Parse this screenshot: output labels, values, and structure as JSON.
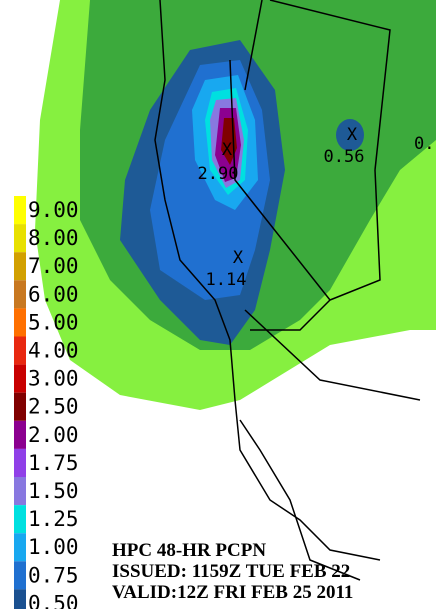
{
  "legend": {
    "items": [
      {
        "label": "9.00",
        "color": "#ffff00"
      },
      {
        "label": "8.00",
        "color": "#e8e000"
      },
      {
        "label": "7.00",
        "color": "#d2a000"
      },
      {
        "label": "6.00",
        "color": "#c87820"
      },
      {
        "label": "5.00",
        "color": "#ff7000"
      },
      {
        "label": "4.00",
        "color": "#e82810"
      },
      {
        "label": "3.00",
        "color": "#c80000"
      },
      {
        "label": "2.50",
        "color": "#800000"
      },
      {
        "label": "2.00",
        "color": "#8c0090"
      },
      {
        "label": "1.75",
        "color": "#9040e8"
      },
      {
        "label": "1.50",
        "color": "#8878e0"
      },
      {
        "label": "1.25",
        "color": "#00e0e0"
      },
      {
        "label": "1.00",
        "color": "#18a8f0"
      },
      {
        "label": "0.75",
        "color": "#2070d0"
      },
      {
        "label": "0.50",
        "color": "#1a5090"
      }
    ]
  },
  "markers": [
    {
      "label": "2.90"
    },
    {
      "label": "1.14"
    },
    {
      "label": "0.56"
    },
    {
      "label": "0."
    }
  ],
  "caption": {
    "line1": "HPC 48-HR PCPN",
    "line2": "ISSUED: 1159Z TUE FEB 22",
    "line3": "VALID:12Z FRI FEB 25 2011"
  }
}
